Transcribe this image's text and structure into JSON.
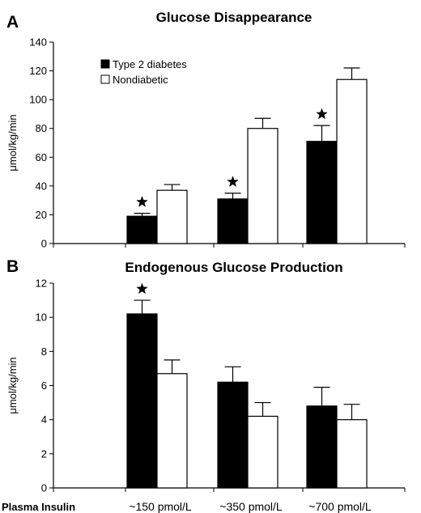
{
  "chart_data": [
    {
      "panel": "A",
      "type": "bar",
      "title": "Glucose Disappearance",
      "ylabel": "μmol/kg/min",
      "ylim": [
        0,
        140
      ],
      "yticks": [
        0,
        20,
        40,
        60,
        80,
        100,
        120,
        140
      ],
      "categories": [
        "~150 pmol/L",
        "~350 pmol/L",
        "~700 pmol/L"
      ],
      "show_category_labels": false,
      "series": [
        {
          "name": "Type 2 diabetes",
          "color": "#000000",
          "values": [
            19,
            31,
            71
          ],
          "errors": [
            2,
            4,
            11
          ],
          "significant": [
            true,
            true,
            true
          ]
        },
        {
          "name": "Nondiabetic",
          "color": "#ffffff",
          "values": [
            37,
            80,
            114
          ],
          "errors": [
            4,
            7,
            8
          ],
          "significant": [
            false,
            false,
            false
          ]
        }
      ],
      "legend": "top-left",
      "grid": false
    },
    {
      "panel": "B",
      "type": "bar",
      "title": "Endogenous Glucose Production",
      "ylabel": "μmol/kg/min",
      "ylim": [
        0,
        12
      ],
      "yticks": [
        0,
        2,
        4,
        6,
        8,
        10,
        12
      ],
      "categories": [
        "~150 pmol/L",
        "~350 pmol/L",
        "~700 pmol/L"
      ],
      "show_category_labels": true,
      "category_row_label": "Plasma Insulin",
      "series": [
        {
          "name": "Type 2 diabetes",
          "color": "#000000",
          "values": [
            10.2,
            6.2,
            4.8
          ],
          "errors": [
            0.8,
            0.9,
            1.1
          ],
          "significant": [
            true,
            false,
            false
          ]
        },
        {
          "name": "Nondiabetic",
          "color": "#ffffff",
          "values": [
            6.7,
            4.2,
            4.0
          ],
          "errors": [
            0.8,
            0.8,
            0.9
          ],
          "significant": [
            false,
            false,
            false
          ]
        }
      ],
      "legend": "none",
      "grid": false
    }
  ]
}
